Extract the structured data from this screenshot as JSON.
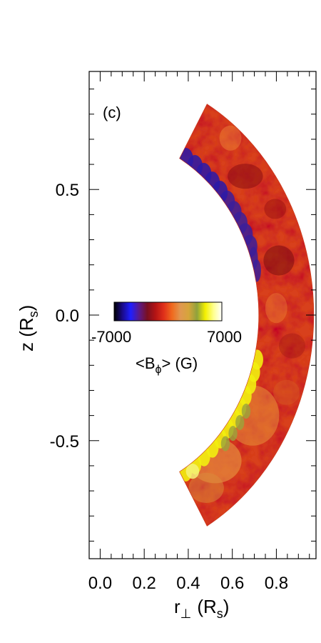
{
  "chart_data": {
    "type": "heatmap",
    "panel_label": "(c)",
    "xlabel": {
      "main": "r",
      "sub": "⊥",
      "unit": "(R",
      "unit_sub": "s",
      "close": ")"
    },
    "ylabel": {
      "main": "z (R",
      "sub": "s",
      "close": ")"
    },
    "xlim": [
      -0.05,
      0.98
    ],
    "ylim": [
      -0.97,
      0.97
    ],
    "x_ticks": [
      0.0,
      0.2,
      0.4,
      0.6,
      0.8
    ],
    "x_tick_labels": [
      "0.0",
      "0.2",
      "0.4",
      "0.6",
      "0.8"
    ],
    "y_ticks": [
      0.5,
      0.0,
      -0.5
    ],
    "y_tick_labels": [
      "0.5",
      "0.0",
      "-0.5"
    ],
    "shell": {
      "r_inner": 0.72,
      "r_outer": 0.97,
      "lat_min_deg": -60,
      "lat_max_deg": 60
    },
    "colorbar": {
      "min_label": "-7000",
      "max_label": "7000",
      "vmin": -7000,
      "vmax": 7000,
      "title": {
        "open": "<B",
        "sub": "ϕ",
        "close": "> (G)"
      },
      "colors": [
        "#000000",
        "#1a0a8a",
        "#1f1fff",
        "#5a1a8c",
        "#7a0f20",
        "#b41414",
        "#e0301a",
        "#f06a1e",
        "#e09850",
        "#d6a53a",
        "#8fa23c",
        "#f4f000",
        "#ffff90",
        "#ffffff"
      ]
    }
  }
}
